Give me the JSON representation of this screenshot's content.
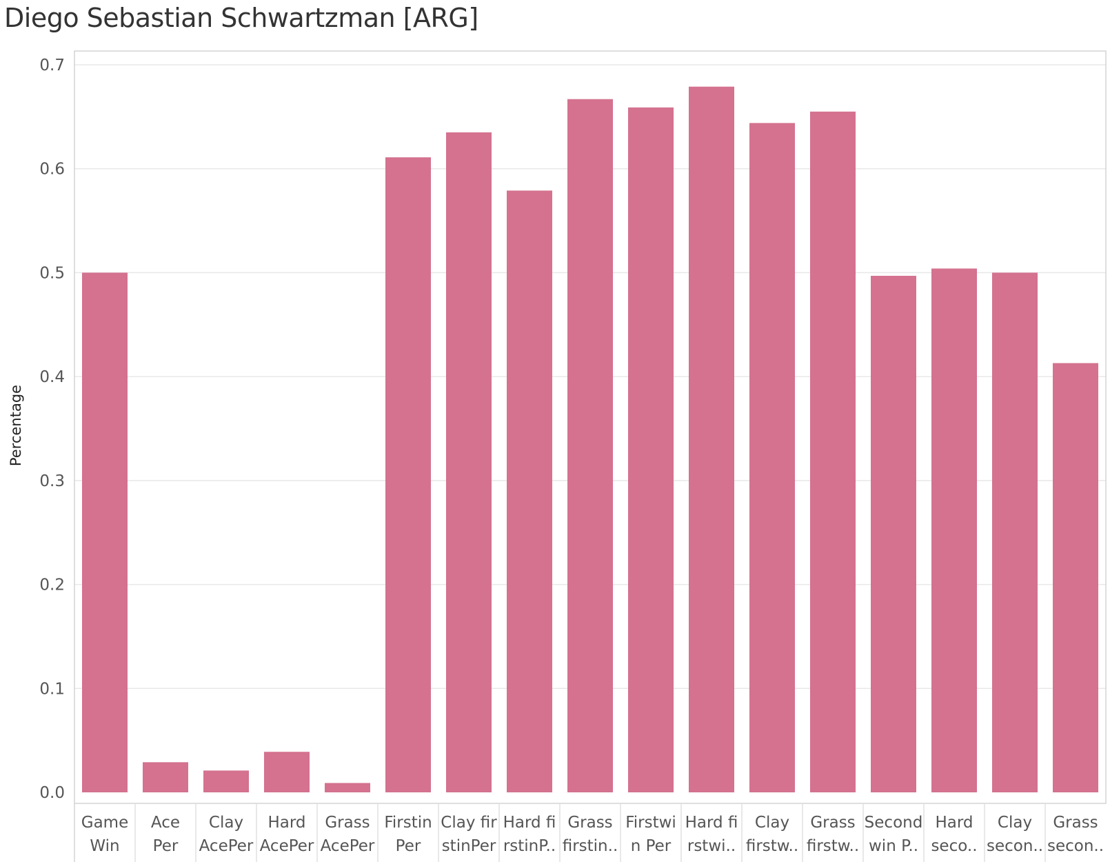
{
  "chart_data": {
    "type": "bar",
    "title": "Diego Sebastian Schwartzman [ARG]",
    "xlabel": "",
    "ylabel": "Percentage",
    "ylim": [
      0,
      0.7
    ],
    "yticks": [
      "0.0",
      "0.1",
      "0.2",
      "0.3",
      "0.4",
      "0.5",
      "0.6",
      "0.7"
    ],
    "grid": true,
    "bar_color": "#d4728f",
    "categories": [
      [
        "Game",
        "Win"
      ],
      [
        "Ace",
        "Per"
      ],
      [
        "Clay",
        "AcePer"
      ],
      [
        "Hard",
        "AcePer"
      ],
      [
        "Grass",
        "AcePer"
      ],
      [
        "Firstin",
        "Per"
      ],
      [
        "Clay fir",
        "stinPer"
      ],
      [
        "Hard fi",
        "rstinP.."
      ],
      [
        "Grass",
        "firstin.."
      ],
      [
        "Firstwi",
        "n Per"
      ],
      [
        "Hard fi",
        "rstwi.."
      ],
      [
        "Clay",
        "firstw.."
      ],
      [
        "Grass",
        "firstw.."
      ],
      [
        "Second",
        "win P.."
      ],
      [
        "Hard",
        "seco.."
      ],
      [
        "Clay",
        "secon.."
      ],
      [
        "Grass",
        "secon.."
      ]
    ],
    "values": [
      0.5,
      0.029,
      0.021,
      0.039,
      0.009,
      0.611,
      0.635,
      0.579,
      0.667,
      0.659,
      0.679,
      0.644,
      0.655,
      0.497,
      0.504,
      0.5,
      0.413
    ]
  }
}
